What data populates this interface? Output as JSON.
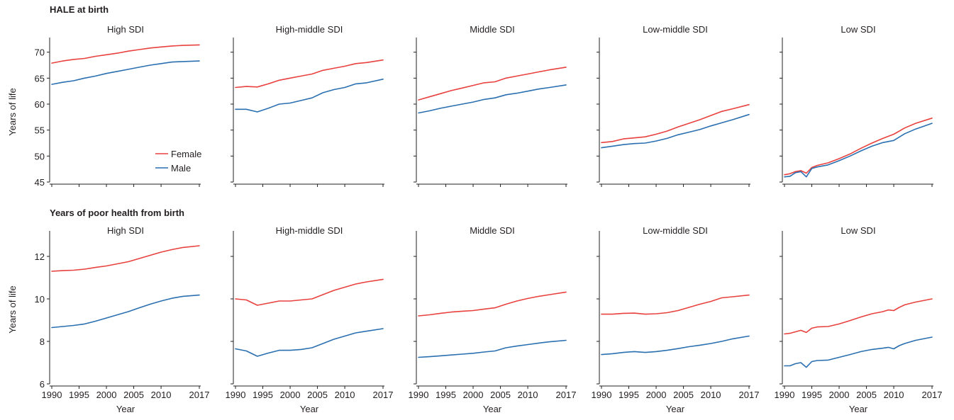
{
  "rows": [
    {
      "title": "HALE at birth"
    },
    {
      "title": "Years of poor health from birth"
    }
  ],
  "legend": {
    "female": "Female",
    "male": "Male"
  },
  "colors": {
    "female": "#e8413e",
    "male": "#2a6fb0"
  },
  "chart_data": [
    {
      "type": "line",
      "title": "High SDI",
      "row": "HALE at birth",
      "xlabel": "",
      "ylabel": "Years of life",
      "ylim": [
        45,
        72
      ],
      "xlim": [
        1990,
        2017
      ],
      "yticks": [
        45,
        50,
        55,
        60,
        65,
        70
      ],
      "xticks": [
        1990,
        1995,
        2000,
        2005,
        2010,
        2017
      ],
      "legend": "bottom-right",
      "x": [
        1990,
        1992,
        1994,
        1996,
        1998,
        2000,
        2002,
        2004,
        2006,
        2008,
        2010,
        2012,
        2014,
        2017
      ],
      "series": [
        {
          "name": "Female",
          "values": [
            67.9,
            68.3,
            68.6,
            68.8,
            69.2,
            69.5,
            69.8,
            70.2,
            70.5,
            70.8,
            71.0,
            71.2,
            71.3,
            71.4
          ]
        },
        {
          "name": "Male",
          "values": [
            63.8,
            64.2,
            64.5,
            65.0,
            65.4,
            65.9,
            66.3,
            66.7,
            67.1,
            67.5,
            67.8,
            68.1,
            68.2,
            68.3
          ]
        }
      ]
    },
    {
      "type": "line",
      "title": "High-middle SDI",
      "row": "HALE at birth",
      "xlabel": "",
      "ylabel": "",
      "ylim": [
        45,
        72
      ],
      "xlim": [
        1990,
        2017
      ],
      "yticks": [
        45,
        50,
        55,
        60,
        65,
        70
      ],
      "xticks": [
        1990,
        1995,
        2000,
        2005,
        2010,
        2017
      ],
      "x": [
        1990,
        1992,
        1994,
        1996,
        1998,
        2000,
        2002,
        2004,
        2006,
        2008,
        2010,
        2012,
        2014,
        2017
      ],
      "series": [
        {
          "name": "Female",
          "values": [
            63.2,
            63.4,
            63.3,
            63.9,
            64.6,
            65.0,
            65.4,
            65.8,
            66.5,
            66.9,
            67.3,
            67.8,
            68.0,
            68.5
          ]
        },
        {
          "name": "Male",
          "values": [
            59.0,
            59.0,
            58.5,
            59.2,
            60.0,
            60.2,
            60.7,
            61.2,
            62.2,
            62.8,
            63.2,
            63.9,
            64.1,
            64.8
          ]
        }
      ]
    },
    {
      "type": "line",
      "title": "Middle SDI",
      "row": "HALE at birth",
      "xlabel": "",
      "ylabel": "",
      "ylim": [
        45,
        72
      ],
      "xlim": [
        1990,
        2017
      ],
      "yticks": [
        45,
        50,
        55,
        60,
        65,
        70
      ],
      "xticks": [
        1990,
        1995,
        2000,
        2005,
        2010,
        2017
      ],
      "x": [
        1990,
        1992,
        1994,
        1996,
        1998,
        2000,
        2002,
        2004,
        2006,
        2008,
        2010,
        2012,
        2014,
        2017
      ],
      "series": [
        {
          "name": "Female",
          "values": [
            60.8,
            61.4,
            62.0,
            62.6,
            63.1,
            63.6,
            64.1,
            64.3,
            65.0,
            65.4,
            65.8,
            66.2,
            66.6,
            67.1
          ]
        },
        {
          "name": "Male",
          "values": [
            58.3,
            58.7,
            59.2,
            59.6,
            60.0,
            60.4,
            60.9,
            61.2,
            61.8,
            62.1,
            62.5,
            62.9,
            63.2,
            63.7
          ]
        }
      ]
    },
    {
      "type": "line",
      "title": "Low-middle SDI",
      "row": "HALE at birth",
      "xlabel": "",
      "ylabel": "",
      "ylim": [
        45,
        72
      ],
      "xlim": [
        1990,
        2017
      ],
      "yticks": [
        45,
        50,
        55,
        60,
        65,
        70
      ],
      "xticks": [
        1990,
        1995,
        2000,
        2005,
        2010,
        2017
      ],
      "x": [
        1990,
        1992,
        1994,
        1996,
        1998,
        2000,
        2002,
        2004,
        2006,
        2008,
        2010,
        2012,
        2014,
        2017
      ],
      "series": [
        {
          "name": "Female",
          "values": [
            52.6,
            52.8,
            53.3,
            53.5,
            53.7,
            54.2,
            54.8,
            55.6,
            56.3,
            57.0,
            57.8,
            58.6,
            59.1,
            59.9
          ]
        },
        {
          "name": "Male",
          "values": [
            51.6,
            51.9,
            52.2,
            52.4,
            52.5,
            52.9,
            53.4,
            54.1,
            54.6,
            55.1,
            55.8,
            56.4,
            57.0,
            58.0
          ]
        }
      ]
    },
    {
      "type": "line",
      "title": "Low SDI",
      "row": "HALE at birth",
      "xlabel": "",
      "ylabel": "",
      "ylim": [
        45,
        72
      ],
      "xlim": [
        1990,
        2017
      ],
      "yticks": [
        45,
        50,
        55,
        60,
        65,
        70
      ],
      "xticks": [
        1990,
        1995,
        2000,
        2005,
        2010,
        2017
      ],
      "x": [
        1990,
        1991,
        1992,
        1993,
        1994,
        1995,
        1996,
        1998,
        2000,
        2002,
        2004,
        2006,
        2008,
        2010,
        2012,
        2014,
        2017
      ],
      "series": [
        {
          "name": "Female",
          "values": [
            46.4,
            46.6,
            47.0,
            47.2,
            46.7,
            47.8,
            48.2,
            48.7,
            49.5,
            50.4,
            51.5,
            52.5,
            53.4,
            54.2,
            55.4,
            56.3,
            57.3
          ]
        },
        {
          "name": "Male",
          "values": [
            46.0,
            46.1,
            46.8,
            47.0,
            46.0,
            47.6,
            47.9,
            48.3,
            49.1,
            50.0,
            51.0,
            51.9,
            52.6,
            53.0,
            54.3,
            55.2,
            56.3
          ]
        }
      ]
    },
    {
      "type": "line",
      "title": "High SDI",
      "row": "Years of poor health from birth",
      "xlabel": "Year",
      "ylabel": "Years of life",
      "ylim": [
        6,
        13
      ],
      "xlim": [
        1990,
        2017
      ],
      "yticks": [
        6,
        8,
        10,
        12
      ],
      "xticks": [
        1990,
        1995,
        2000,
        2005,
        2010,
        2017
      ],
      "x": [
        1990,
        1992,
        1994,
        1996,
        1998,
        2000,
        2002,
        2004,
        2006,
        2008,
        2010,
        2012,
        2014,
        2017
      ],
      "series": [
        {
          "name": "Female",
          "values": [
            11.3,
            11.33,
            11.35,
            11.4,
            11.48,
            11.55,
            11.65,
            11.75,
            11.9,
            12.05,
            12.2,
            12.32,
            12.42,
            12.5
          ]
        },
        {
          "name": "Male",
          "values": [
            8.65,
            8.7,
            8.75,
            8.82,
            8.95,
            9.1,
            9.25,
            9.4,
            9.58,
            9.75,
            9.9,
            10.03,
            10.12,
            10.18
          ]
        }
      ]
    },
    {
      "type": "line",
      "title": "High-middle SDI",
      "row": "Years of poor health from birth",
      "xlabel": "Year",
      "ylabel": "",
      "ylim": [
        6,
        13
      ],
      "xlim": [
        1990,
        2017
      ],
      "yticks": [
        6,
        8,
        10,
        12
      ],
      "xticks": [
        1990,
        1995,
        2000,
        2005,
        2010,
        2017
      ],
      "x": [
        1990,
        1992,
        1994,
        1996,
        1998,
        2000,
        2002,
        2004,
        2006,
        2008,
        2010,
        2012,
        2014,
        2017
      ],
      "series": [
        {
          "name": "Female",
          "values": [
            10.0,
            9.95,
            9.7,
            9.8,
            9.9,
            9.9,
            9.95,
            10.0,
            10.2,
            10.4,
            10.55,
            10.7,
            10.8,
            10.92
          ]
        },
        {
          "name": "Male",
          "values": [
            7.65,
            7.55,
            7.3,
            7.45,
            7.58,
            7.58,
            7.62,
            7.7,
            7.9,
            8.1,
            8.25,
            8.4,
            8.48,
            8.6
          ]
        }
      ]
    },
    {
      "type": "line",
      "title": "Middle SDI",
      "row": "Years of poor health from birth",
      "xlabel": "Year",
      "ylabel": "",
      "ylim": [
        6,
        13
      ],
      "xlim": [
        1990,
        2017
      ],
      "yticks": [
        6,
        8,
        10,
        12
      ],
      "xticks": [
        1990,
        1995,
        2000,
        2005,
        2010,
        2017
      ],
      "x": [
        1990,
        1992,
        1994,
        1996,
        1998,
        2000,
        2002,
        2004,
        2006,
        2008,
        2010,
        2012,
        2014,
        2017
      ],
      "series": [
        {
          "name": "Female",
          "values": [
            9.2,
            9.25,
            9.32,
            9.38,
            9.42,
            9.45,
            9.52,
            9.58,
            9.75,
            9.9,
            10.02,
            10.12,
            10.2,
            10.32
          ]
        },
        {
          "name": "Male",
          "values": [
            7.25,
            7.28,
            7.32,
            7.36,
            7.4,
            7.44,
            7.5,
            7.55,
            7.7,
            7.78,
            7.85,
            7.92,
            7.98,
            8.05
          ]
        }
      ]
    },
    {
      "type": "line",
      "title": "Low-middle SDI",
      "row": "Years of poor health from birth",
      "xlabel": "Year",
      "ylabel": "",
      "ylim": [
        6,
        13
      ],
      "xlim": [
        1990,
        2017
      ],
      "yticks": [
        6,
        8,
        10,
        12
      ],
      "xticks": [
        1990,
        1995,
        2000,
        2005,
        2010,
        2017
      ],
      "x": [
        1990,
        1992,
        1994,
        1996,
        1998,
        2000,
        2002,
        2004,
        2006,
        2008,
        2010,
        2012,
        2014,
        2017
      ],
      "series": [
        {
          "name": "Female",
          "values": [
            9.28,
            9.28,
            9.32,
            9.33,
            9.28,
            9.3,
            9.35,
            9.45,
            9.6,
            9.75,
            9.88,
            10.05,
            10.1,
            10.18
          ]
        },
        {
          "name": "Male",
          "values": [
            7.38,
            7.42,
            7.48,
            7.52,
            7.48,
            7.52,
            7.58,
            7.66,
            7.75,
            7.82,
            7.9,
            8.0,
            8.12,
            8.25
          ]
        }
      ]
    },
    {
      "type": "line",
      "title": "Low SDI",
      "row": "Years of poor health from birth",
      "xlabel": "Year",
      "ylabel": "",
      "ylim": [
        6,
        13
      ],
      "xlim": [
        1990,
        2017
      ],
      "yticks": [
        6,
        8,
        10,
        12
      ],
      "xticks": [
        1990,
        1995,
        2000,
        2005,
        2010,
        2017
      ],
      "x": [
        1990,
        1991,
        1992,
        1993,
        1994,
        1995,
        1996,
        1998,
        2000,
        2002,
        2004,
        2006,
        2008,
        2009,
        2010,
        2011,
        2012,
        2014,
        2017
      ],
      "series": [
        {
          "name": "Female",
          "values": [
            8.35,
            8.38,
            8.45,
            8.52,
            8.42,
            8.62,
            8.68,
            8.7,
            8.82,
            8.98,
            9.15,
            9.3,
            9.4,
            9.48,
            9.45,
            9.6,
            9.72,
            9.85,
            10.0
          ]
        },
        {
          "name": "Male",
          "values": [
            6.85,
            6.85,
            6.95,
            7.0,
            6.78,
            7.05,
            7.1,
            7.12,
            7.25,
            7.38,
            7.52,
            7.62,
            7.68,
            7.72,
            7.65,
            7.8,
            7.9,
            8.05,
            8.2
          ]
        }
      ]
    }
  ]
}
